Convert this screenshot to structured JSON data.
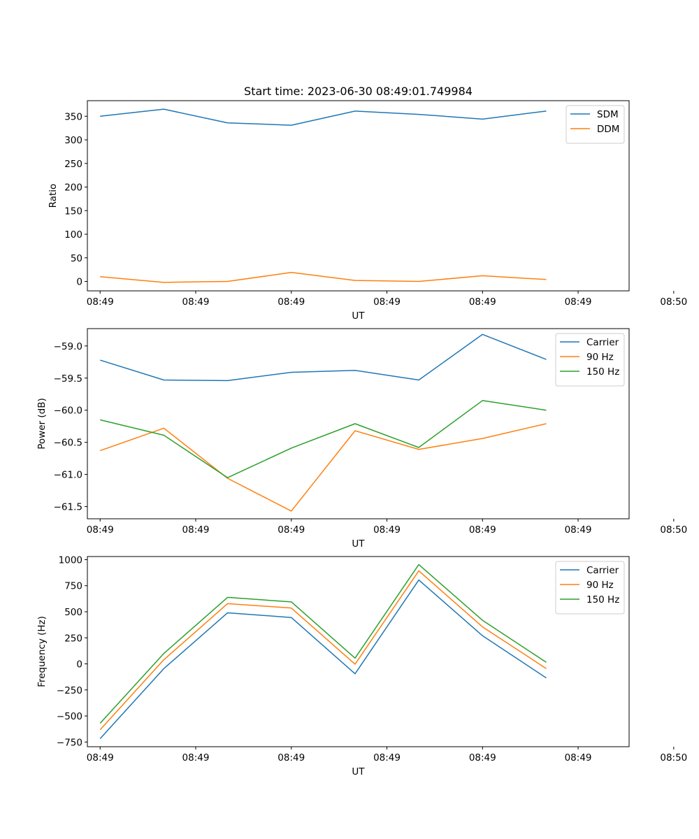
{
  "figure_title": "Start time: 2023-06-30 08:49:01.749984",
  "chart_data": [
    {
      "type": "line",
      "title": "Start time: 2023-06-30 08:49:01.749984",
      "xlabel": "UT",
      "ylabel": "Ratio",
      "x": [
        1,
        2,
        3,
        4,
        5,
        6,
        7,
        8
      ],
      "xlim": [
        0.8,
        9.3
      ],
      "x_ticks": [
        {
          "value": 1,
          "label": "08:49"
        },
        {
          "value": 2.5,
          "label": "08:49"
        },
        {
          "value": 4.0,
          "label": "08:49"
        },
        {
          "value": 5.5,
          "label": "08:49"
        },
        {
          "value": 7.0,
          "label": "08:49"
        },
        {
          "value": 8.5,
          "label": "08:49"
        },
        {
          "value": 10.0,
          "label": "08:50"
        }
      ],
      "ylim": [
        -20,
        383
      ],
      "y_ticks": [
        0,
        50,
        100,
        150,
        200,
        250,
        300,
        350
      ],
      "legend_position": "top-right",
      "series": [
        {
          "name": "SDM",
          "color": "#1f77b4",
          "values": [
            350,
            365,
            336,
            331,
            361,
            354,
            344,
            361
          ]
        },
        {
          "name": "DDM",
          "color": "#ff7f0e",
          "values": [
            10,
            -2,
            0,
            19,
            2,
            0,
            12,
            4
          ]
        }
      ]
    },
    {
      "type": "line",
      "title": "",
      "xlabel": "UT",
      "ylabel": "Power (dB)",
      "x": [
        1,
        2,
        3,
        4,
        5,
        6,
        7,
        8
      ],
      "xlim": [
        0.8,
        9.3
      ],
      "x_ticks": [
        {
          "value": 1,
          "label": "08:49"
        },
        {
          "value": 2.5,
          "label": "08:49"
        },
        {
          "value": 4.0,
          "label": "08:49"
        },
        {
          "value": 5.5,
          "label": "08:49"
        },
        {
          "value": 7.0,
          "label": "08:49"
        },
        {
          "value": 8.5,
          "label": "08:49"
        },
        {
          "value": 10.0,
          "label": "08:50"
        }
      ],
      "ylim": [
        -61.69,
        -58.73
      ],
      "y_ticks": [
        -59.0,
        -59.5,
        -60.0,
        -60.5,
        -61.0,
        -61.5
      ],
      "y_tick_labels": [
        "−59.0",
        "−59.5",
        "−60.0",
        "−60.5",
        "−61.0",
        "−61.5"
      ],
      "legend_position": "top-right",
      "series": [
        {
          "name": "Carrier",
          "color": "#1f77b4",
          "values": [
            -59.22,
            -59.53,
            -59.54,
            -59.41,
            -59.38,
            -59.53,
            -58.82,
            -59.21
          ]
        },
        {
          "name": "90 Hz",
          "color": "#ff7f0e",
          "values": [
            -60.63,
            -60.28,
            -61.06,
            -61.57,
            -60.32,
            -60.61,
            -60.44,
            -60.21
          ]
        },
        {
          "name": "150 Hz",
          "color": "#2ca02c",
          "values": [
            -60.15,
            -60.39,
            -61.05,
            -60.59,
            -60.21,
            -60.58,
            -59.85,
            -60.0
          ]
        }
      ]
    },
    {
      "type": "line",
      "title": "",
      "xlabel": "UT",
      "ylabel": "Frequency (Hz)",
      "x": [
        1,
        2,
        3,
        4,
        5,
        6,
        7,
        8
      ],
      "xlim": [
        0.8,
        9.3
      ],
      "x_ticks": [
        {
          "value": 1,
          "label": "08:49"
        },
        {
          "value": 2.5,
          "label": "08:49"
        },
        {
          "value": 4.0,
          "label": "08:49"
        },
        {
          "value": 5.5,
          "label": "08:49"
        },
        {
          "value": 7.0,
          "label": "08:49"
        },
        {
          "value": 8.5,
          "label": "08:49"
        },
        {
          "value": 10.0,
          "label": "08:50"
        }
      ],
      "ylim": [
        -795,
        1030
      ],
      "y_ticks": [
        1000,
        750,
        500,
        250,
        0,
        -250,
        -500,
        -750
      ],
      "y_tick_labels": [
        "1000",
        "750",
        "500",
        "250",
        "0",
        "−250",
        "−500",
        "−750"
      ],
      "legend_position": "top-right",
      "series": [
        {
          "name": "Carrier",
          "color": "#1f77b4",
          "values": [
            -718,
            -45,
            490,
            445,
            -95,
            805,
            270,
            -135
          ]
        },
        {
          "name": "90 Hz",
          "color": "#ff7f0e",
          "values": [
            -632,
            40,
            578,
            536,
            -3,
            893,
            355,
            -45
          ]
        },
        {
          "name": "150 Hz",
          "color": "#2ca02c",
          "values": [
            -570,
            100,
            638,
            595,
            55,
            953,
            418,
            15
          ]
        }
      ]
    }
  ]
}
